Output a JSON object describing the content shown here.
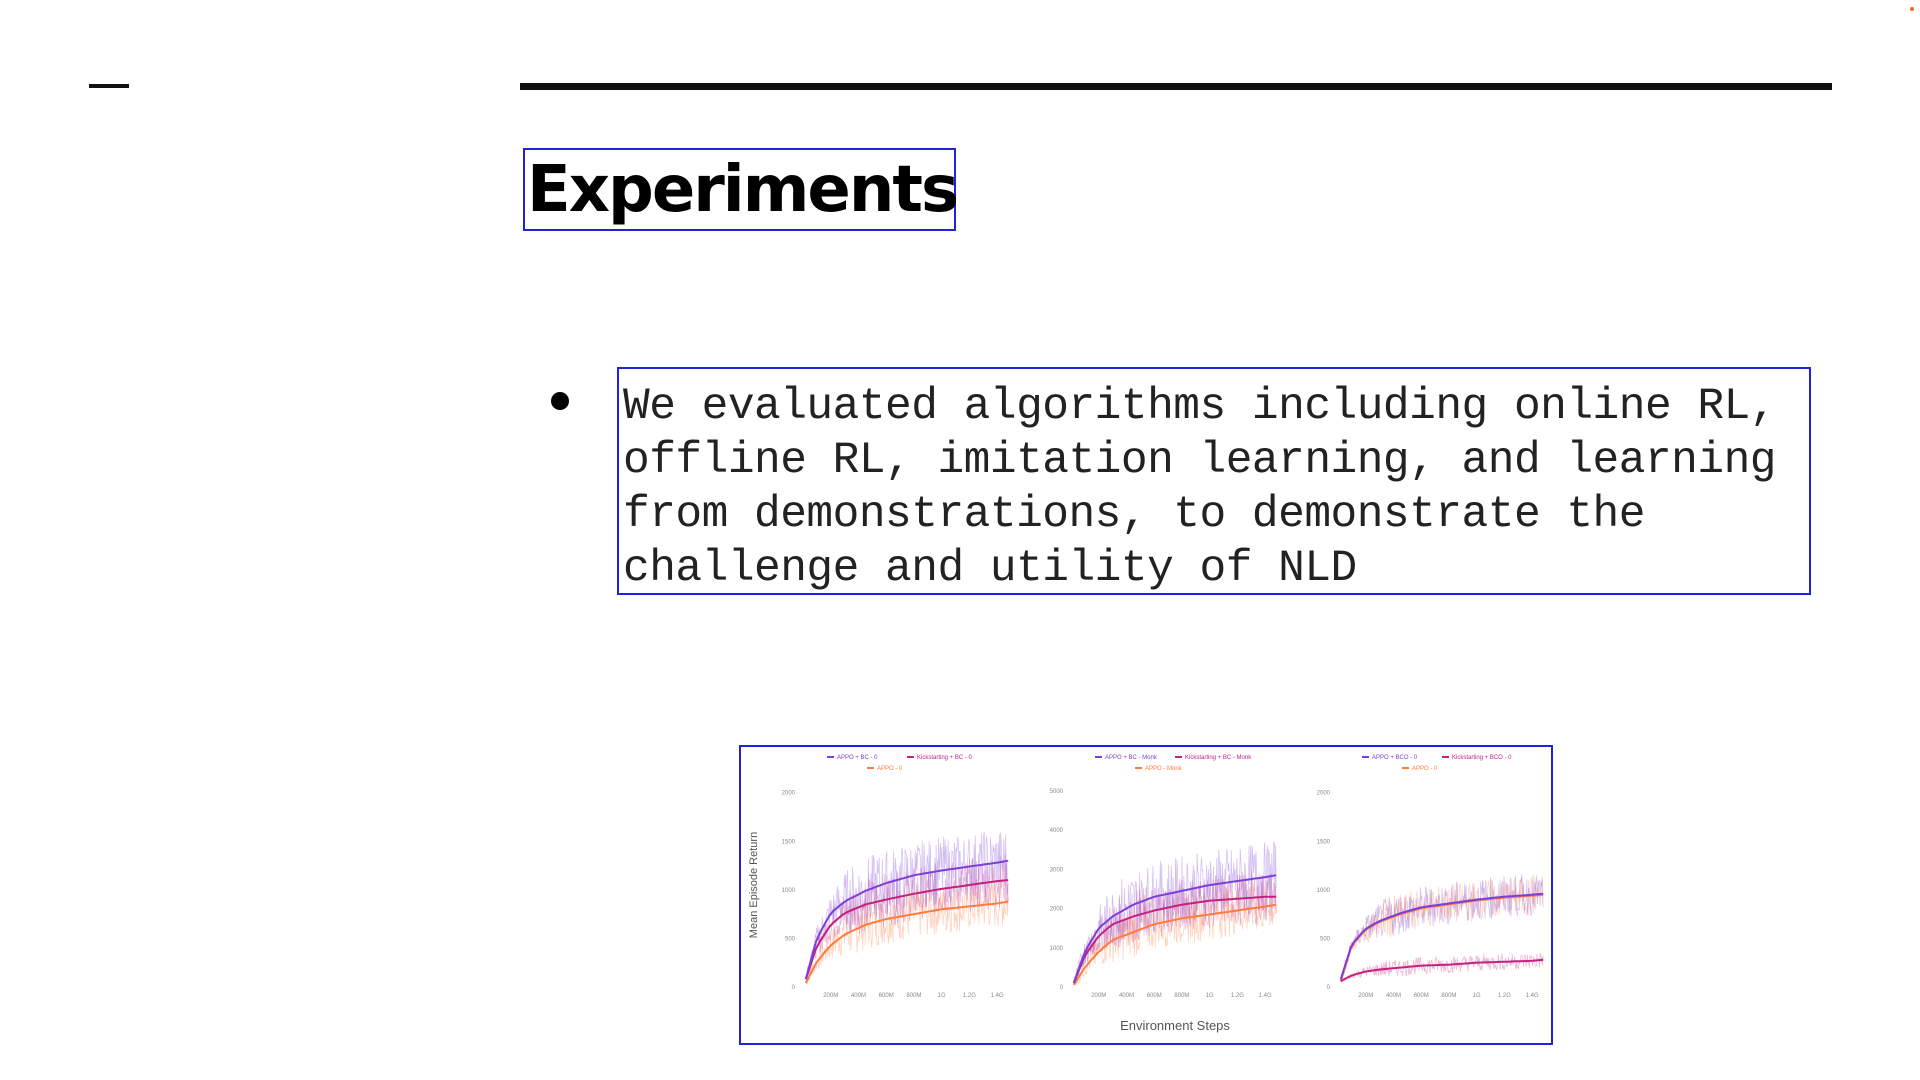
{
  "slide": {
    "title": "Experiments",
    "bullets": [
      [
        "We evaluated algorithms including online RL,",
        "offline RL, imitation learning, and learning",
        "from demonstrations, to demonstrate the",
        "challenge and utility of NLD"
      ]
    ],
    "colors": {
      "accent_box": "#2222dd",
      "rule": "#111111"
    }
  },
  "chart_data": [
    {
      "type": "line",
      "legend_placement": "top",
      "legend_entries": [
        "APPO + BC - 0",
        "Kickstarting + BC - 0",
        "APPO - 0"
      ],
      "ylabel": "Mean Episode Return",
      "xlabel": "",
      "yticks": [
        "0",
        "500",
        "1000",
        "1500",
        "2000"
      ],
      "xticks": [
        "200M",
        "400M",
        "600M",
        "800M",
        "1G",
        "1.2G",
        "1.4G"
      ],
      "xlim": [
        0,
        1.5
      ],
      "ylim": [
        0,
        2100
      ],
      "grid": false,
      "series": [
        {
          "name": "APPO + BC - 0",
          "color": "#7b3fd9",
          "x": [
            0.02,
            0.1,
            0.2,
            0.3,
            0.45,
            0.6,
            0.8,
            1.0,
            1.2,
            1.4,
            1.48
          ],
          "y": [
            80,
            500,
            760,
            880,
            990,
            1070,
            1150,
            1200,
            1240,
            1280,
            1300
          ],
          "noise": 350
        },
        {
          "name": "Kickstarting + BC - 0",
          "color": "#c2217e",
          "x": [
            0.02,
            0.1,
            0.2,
            0.3,
            0.45,
            0.6,
            0.8,
            1.0,
            1.2,
            1.4,
            1.48
          ],
          "y": [
            80,
            420,
            640,
            760,
            850,
            900,
            960,
            1010,
            1050,
            1090,
            1100
          ],
          "noise": 280
        },
        {
          "name": "APPO - 0",
          "color": "#ff7a3d",
          "x": [
            0.02,
            0.1,
            0.2,
            0.3,
            0.45,
            0.6,
            0.8,
            1.0,
            1.2,
            1.4,
            1.48
          ],
          "y": [
            40,
            260,
            430,
            540,
            640,
            700,
            750,
            800,
            830,
            860,
            880
          ],
          "noise": 260
        }
      ]
    },
    {
      "type": "line",
      "legend_placement": "top",
      "legend_entries": [
        "APPO + BC - Monk",
        "Kickstarting + BC - Monk",
        "APPO - Monk"
      ],
      "xlabel": "Environment Steps",
      "ylabel": "",
      "yticks": [
        "0",
        "1000",
        "2000",
        "3000",
        "4000",
        "5000"
      ],
      "xticks": [
        "200M",
        "400M",
        "600M",
        "800M",
        "1G",
        "1.2G",
        "1.4G"
      ],
      "xlim": [
        0,
        1.5
      ],
      "ylim": [
        0,
        5200
      ],
      "grid": false,
      "series": [
        {
          "name": "APPO + BC - Monk",
          "color": "#7b3fd9",
          "x": [
            0.02,
            0.1,
            0.2,
            0.3,
            0.45,
            0.6,
            0.8,
            1.0,
            1.2,
            1.4,
            1.48
          ],
          "y": [
            100,
            900,
            1500,
            1800,
            2100,
            2300,
            2450,
            2600,
            2700,
            2800,
            2850
          ],
          "noise": 900
        },
        {
          "name": "Kickstarting + BC - Monk",
          "color": "#c2217e",
          "x": [
            0.02,
            0.1,
            0.2,
            0.3,
            0.45,
            0.6,
            0.8,
            1.0,
            1.2,
            1.4,
            1.48
          ],
          "y": [
            100,
            800,
            1300,
            1600,
            1800,
            1950,
            2100,
            2200,
            2250,
            2300,
            2300
          ],
          "noise": 700
        },
        {
          "name": "APPO - Monk",
          "color": "#ff7a3d",
          "x": [
            0.02,
            0.1,
            0.2,
            0.3,
            0.45,
            0.6,
            0.8,
            1.0,
            1.2,
            1.4,
            1.48
          ],
          "y": [
            50,
            500,
            900,
            1200,
            1400,
            1600,
            1750,
            1850,
            1950,
            2050,
            2100
          ],
          "noise": 650
        }
      ]
    },
    {
      "type": "line",
      "legend_placement": "top",
      "legend_entries": [
        "APPO + BCO - 0",
        "Kickstarting + BCO - 0",
        "APPO - 0"
      ],
      "xlabel": "",
      "ylabel": "",
      "yticks": [
        "0",
        "500",
        "1000",
        "1500",
        "2000"
      ],
      "xticks": [
        "200M",
        "400M",
        "600M",
        "800M",
        "1G",
        "1.2G",
        "1.4G"
      ],
      "xlim": [
        0,
        1.5
      ],
      "ylim": [
        0,
        2100
      ],
      "grid": false,
      "series": [
        {
          "name": "APPO + BCO - 0",
          "color": "#7b3fd9",
          "x": [
            0.02,
            0.1,
            0.2,
            0.3,
            0.45,
            0.6,
            0.8,
            1.0,
            1.2,
            1.4,
            1.48
          ],
          "y": [
            80,
            440,
            600,
            680,
            760,
            820,
            860,
            900,
            930,
            950,
            960
          ],
          "noise": 220
        },
        {
          "name": "Kickstarting + BCO - 0",
          "color": "#c2217e",
          "x": [
            0.02,
            0.1,
            0.2,
            0.3,
            0.45,
            0.6,
            0.8,
            1.0,
            1.2,
            1.4,
            1.48
          ],
          "y": [
            60,
            120,
            160,
            180,
            200,
            220,
            230,
            250,
            260,
            270,
            280
          ],
          "noise": 90
        },
        {
          "name": "APPO - 0",
          "color": "#ff7a3d",
          "x": [
            0.02,
            0.1,
            0.2,
            0.3,
            0.45,
            0.6,
            0.8,
            1.0,
            1.2,
            1.4,
            1.48
          ],
          "y": [
            60,
            430,
            590,
            670,
            750,
            810,
            850,
            890,
            920,
            940,
            950
          ],
          "noise": 210
        }
      ]
    }
  ]
}
